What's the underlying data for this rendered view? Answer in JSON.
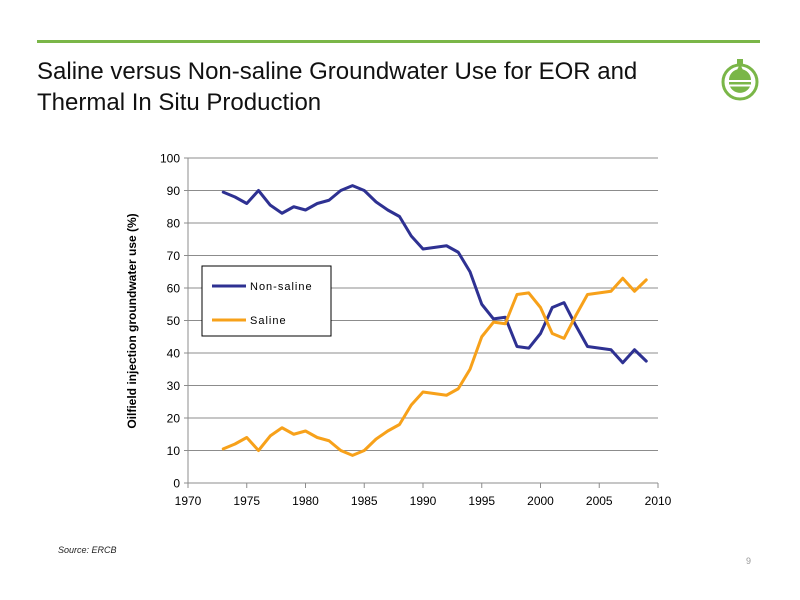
{
  "slide": {
    "title_line1": "Saline versus Non-saline Groundwater Use for EOR and",
    "title_line2": "Thermal In Situ Production",
    "source": "Source: ERCB",
    "page_number": "9",
    "accent_color": "#7ab648",
    "logo_icon": "oil-drop-logo-icon"
  },
  "chart_data": {
    "type": "line",
    "title": "",
    "xlabel": "",
    "ylabel": "Oilfield injection groundwater use (%)",
    "xlim": [
      1970,
      2010
    ],
    "ylim": [
      0,
      100
    ],
    "xticks": [
      1970,
      1975,
      1980,
      1985,
      1990,
      1995,
      2000,
      2005,
      2010
    ],
    "yticks": [
      0,
      10,
      20,
      30,
      40,
      50,
      60,
      70,
      80,
      90,
      100
    ],
    "grid": true,
    "legend_position": "left-middle",
    "x": [
      1973,
      1974,
      1975,
      1976,
      1977,
      1978,
      1979,
      1980,
      1981,
      1982,
      1983,
      1984,
      1985,
      1986,
      1987,
      1988,
      1989,
      1990,
      1991,
      1992,
      1993,
      1994,
      1995,
      1996,
      1997,
      1998,
      1999,
      2000,
      2001,
      2002,
      2003,
      2004,
      2005,
      2006,
      2007,
      2008,
      2009
    ],
    "series": [
      {
        "name": "Non-saline",
        "color": "#2e3192",
        "values": [
          89.5,
          88,
          86,
          90,
          85.5,
          83,
          85,
          84,
          86,
          87,
          90,
          91.5,
          90,
          86.5,
          84,
          82,
          76,
          72,
          72.5,
          73,
          71,
          65,
          55,
          50.5,
          51,
          42,
          41.5,
          46,
          54,
          55.5,
          48.5,
          42,
          41.5,
          41,
          37,
          41,
          37.5
        ]
      },
      {
        "name": "Saline",
        "color": "#f7a11a",
        "values": [
          10.5,
          12,
          14,
          10,
          14.5,
          17,
          15,
          16,
          14,
          13,
          10,
          8.5,
          10,
          13.5,
          16,
          18,
          24,
          28,
          27.5,
          27,
          29,
          35,
          45,
          49.5,
          49,
          58,
          58.5,
          54,
          46,
          44.5,
          51.5,
          58,
          58.5,
          59,
          63,
          59,
          62.5
        ]
      }
    ]
  }
}
